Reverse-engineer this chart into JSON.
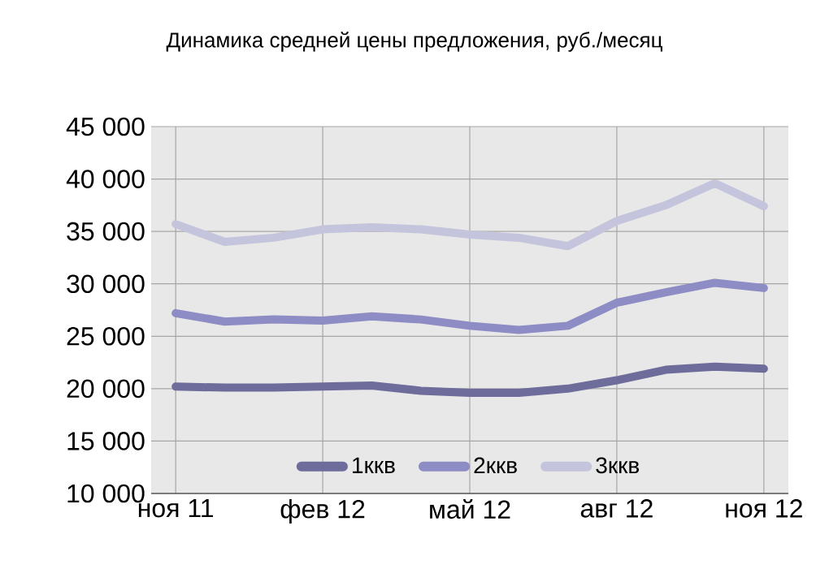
{
  "chart_data": {
    "type": "line",
    "title": "Динамика средней цены предложения, руб./месяц",
    "categories": [
      "ноя 11",
      null,
      null,
      "фев 12",
      null,
      null,
      "май 12",
      null,
      null,
      "авг 12",
      null,
      null,
      "ноя 12"
    ],
    "series": [
      {
        "name": "1ккв",
        "color": "#6e6c9a",
        "values": [
          20200,
          20100,
          20100,
          20200,
          20300,
          19800,
          19600,
          19600,
          20000,
          20800,
          21800,
          22100,
          21900
        ]
      },
      {
        "name": "2ккв",
        "color": "#8e8cc4",
        "values": [
          27200,
          26400,
          26600,
          26500,
          26900,
          26600,
          26000,
          25600,
          26000,
          28200,
          29200,
          30100,
          29600
        ]
      },
      {
        "name": "3ккв",
        "color": "#c4c4dc",
        "values": [
          35700,
          34000,
          34400,
          35200,
          35400,
          35200,
          34700,
          34400,
          33600,
          36000,
          37500,
          39600,
          37400
        ]
      }
    ],
    "ylim": [
      10000,
      45000
    ],
    "yticks": [
      {
        "value": 10000,
        "label": "10 000"
      },
      {
        "value": 15000,
        "label": "15 000"
      },
      {
        "value": 20000,
        "label": "20 000"
      },
      {
        "value": 25000,
        "label": "25 000"
      },
      {
        "value": 30000,
        "label": "30 000"
      },
      {
        "value": 35000,
        "label": "35 000"
      },
      {
        "value": 40000,
        "label": "40 000"
      },
      {
        "value": 45000,
        "label": "45 000"
      }
    ],
    "grid": true,
    "legend": "bottom",
    "marker": "none",
    "line_style": "solid"
  }
}
